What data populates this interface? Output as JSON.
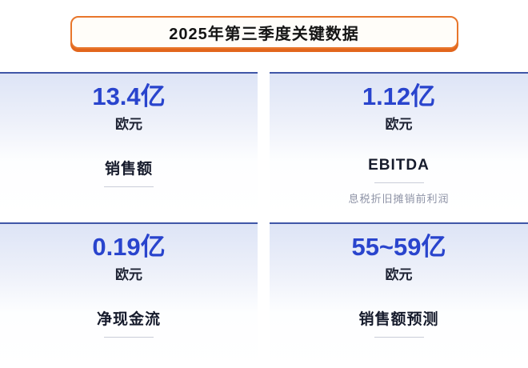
{
  "banner": {
    "title": "2025年第三季度关键数据"
  },
  "chart_data": {
    "type": "table",
    "title": "2025年第三季度关键数据",
    "metrics": [
      {
        "label": "销售额",
        "value": "13.4亿",
        "unit": "欧元"
      },
      {
        "label": "EBITDA",
        "value": "1.12亿",
        "unit": "欧元",
        "note": "息税折旧摊销前利润"
      },
      {
        "label": "净现金流",
        "value": "0.19亿",
        "unit": "欧元"
      },
      {
        "label": "销售额预测",
        "value": "55~59亿",
        "unit": "欧元"
      }
    ]
  },
  "colors": {
    "accent_orange": "#E8762B",
    "accent_orange_shadow": "#E2661C",
    "value_blue": "#2944CD",
    "card_top_border_blue": "#3F56A7",
    "card_gradient_top": "#DDE4F6",
    "label_dark": "#161B2C",
    "subtitle_gray": "#8E93A6",
    "divider_gray": "#C9CDD8"
  }
}
